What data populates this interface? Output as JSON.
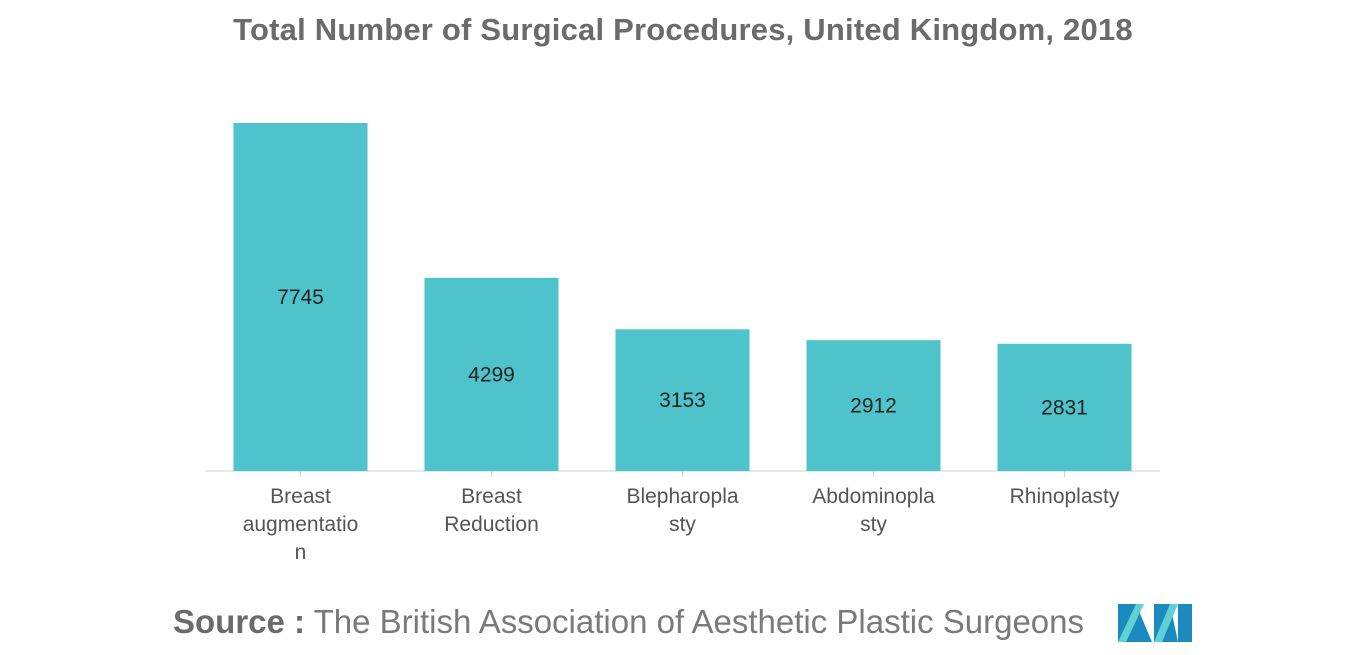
{
  "chart_data": {
    "type": "bar",
    "title": "Total Number of Surgical Procedures, United Kingdom, 2018",
    "categories": [
      [
        "Breast",
        "augmentatio",
        "n"
      ],
      [
        "Breast",
        "Reduction"
      ],
      [
        "Blepharopla",
        "sty"
      ],
      [
        "Abdominopla",
        "sty"
      ],
      [
        "Rhinoplasty"
      ]
    ],
    "values": [
      7745,
      4299,
      3153,
      2912,
      2831
    ],
    "data_labels": [
      "7745",
      "4299",
      "3153",
      "2912",
      "2831"
    ],
    "xlabel": "",
    "ylabel": "",
    "grid": false,
    "legend": "none",
    "bar_color": "#4fc3cb"
  },
  "source": {
    "prefix": "Source :",
    "text": "The British Association of Aesthetic Plastic Surgeons"
  },
  "logo": {
    "icon": "mordor-intelligence-logo-icon",
    "colors": [
      "#1b8bbf",
      "#5fd0d4"
    ]
  }
}
